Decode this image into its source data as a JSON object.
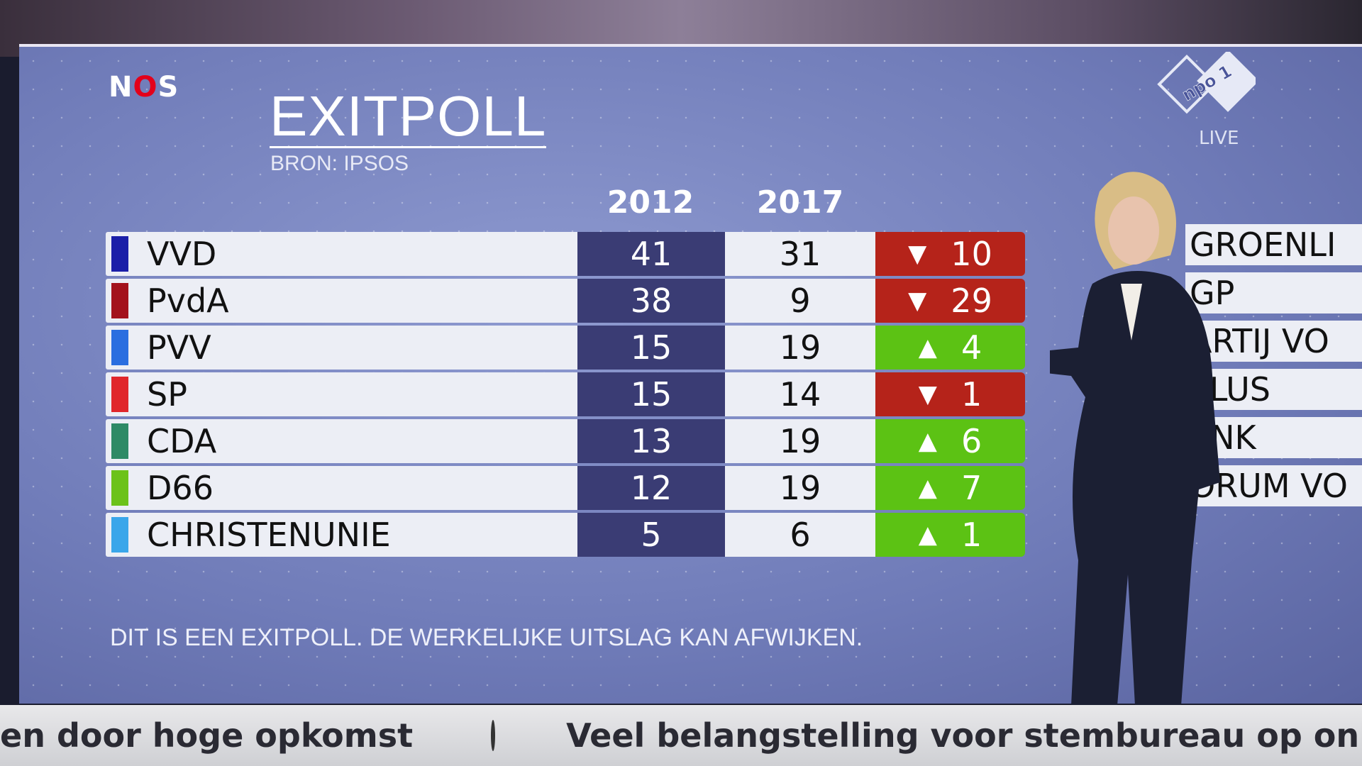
{
  "logo": {
    "brand_prefix": "N",
    "brand_o": "O",
    "brand_suffix": "S"
  },
  "title": "EXITPOLL",
  "source": "BRON: IPSOS",
  "columns": [
    "2012",
    "2017"
  ],
  "rows": [
    {
      "party": "VVD",
      "color": "#1b1fa8",
      "y2012": "41",
      "y2017": "31",
      "change": "10",
      "direction": "down"
    },
    {
      "party": "PvdA",
      "color": "#a3121c",
      "y2012": "38",
      "y2017": "9",
      "change": "29",
      "direction": "down"
    },
    {
      "party": "PVV",
      "color": "#2a6ee0",
      "y2012": "15",
      "y2017": "19",
      "change": "4",
      "direction": "up"
    },
    {
      "party": "SP",
      "color": "#e0262b",
      "y2012": "15",
      "y2017": "14",
      "change": "1",
      "direction": "down"
    },
    {
      "party": "CDA",
      "color": "#2e8a66",
      "y2012": "13",
      "y2017": "19",
      "change": "6",
      "direction": "up"
    },
    {
      "party": "D66",
      "color": "#6cc21a",
      "y2012": "12",
      "y2017": "19",
      "change": "7",
      "direction": "up"
    },
    {
      "party": "CHRISTENUNIE",
      "color": "#3aa6ea",
      "y2012": "5",
      "y2017": "6",
      "change": "1",
      "direction": "up"
    }
  ],
  "colors": {
    "down": "#b5231a",
    "up": "#5cc214"
  },
  "disclaimer": "DIT IS EEN EXITPOLL. DE WERKELIJKE UITSLAG KAN AFWIJKEN.",
  "channel": {
    "name": "npo 1",
    "live": "LIVE"
  },
  "right_panel": [
    "GROENLI",
    "GP",
    "ARTIJ VO",
    "PLUS",
    "ENK",
    "ORUM VO"
  ],
  "ticker": {
    "item1": "en door hoge opkomst",
    "item2": "Veel belangstelling voor stembureau op onbewoo"
  }
}
